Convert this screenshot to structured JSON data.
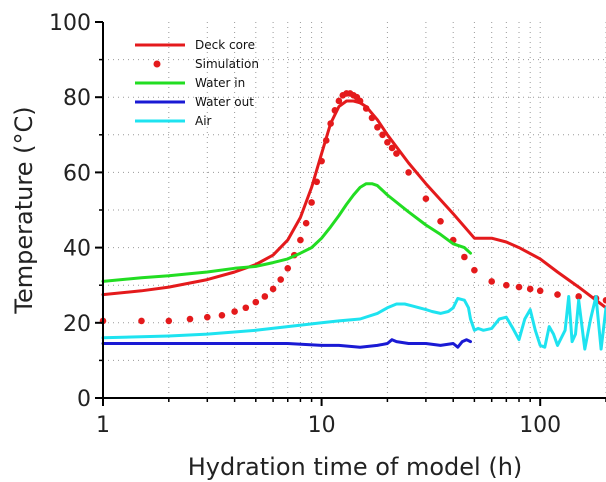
{
  "chart_data": {
    "type": "line",
    "xlabel": "Hydration time of model (h)",
    "ylabel": "Temperature (°C)",
    "x_scale": "log",
    "xlim": [
      1,
      200
    ],
    "ylim": [
      0,
      100
    ],
    "x_ticks": [
      1,
      10,
      100
    ],
    "y_ticks": [
      0,
      20,
      40,
      60,
      80,
      100
    ],
    "grid": true,
    "legend_position": "top-left",
    "series": [
      {
        "name": "Deck core",
        "style": "line",
        "color": "#e41a1c",
        "x": [
          1,
          1.5,
          2,
          3,
          4,
          5,
          6,
          7,
          8,
          9,
          10,
          11,
          12,
          13,
          14,
          15,
          16,
          18,
          20,
          25,
          30,
          40,
          50,
          60,
          70,
          80,
          100,
          120,
          150,
          200
        ],
        "y": [
          27.5,
          28.5,
          29.5,
          31.5,
          33.5,
          35.5,
          38,
          42,
          48,
          56,
          65,
          73,
          77.5,
          79,
          79,
          78.5,
          77.5,
          74,
          70,
          62.5,
          57,
          49,
          42.5,
          42.5,
          41.5,
          40,
          37,
          33.5,
          29.5,
          24
        ]
      },
      {
        "name": "Simulation",
        "style": "dots",
        "color": "#e41a1c",
        "x": [
          1,
          1.5,
          2,
          2.5,
          3,
          3.5,
          4,
          4.5,
          5,
          5.5,
          6,
          6.5,
          7,
          7.5,
          8,
          8.5,
          9,
          9.5,
          10,
          10.5,
          11,
          11.5,
          12,
          12.5,
          13,
          13.5,
          14,
          14.5,
          15,
          16,
          17,
          18,
          19,
          20,
          21,
          22,
          25,
          30,
          35,
          40,
          45,
          50,
          60,
          70,
          80,
          90,
          100,
          120,
          150,
          180,
          200
        ],
        "y": [
          20.5,
          20.5,
          20.5,
          21,
          21.5,
          22,
          23,
          24,
          25.5,
          27,
          29,
          31.5,
          34.5,
          38,
          42,
          46.5,
          52,
          57.5,
          63,
          68.5,
          73,
          76.5,
          79,
          80.5,
          81,
          81,
          80.5,
          80,
          79,
          77,
          74.5,
          72,
          70,
          68,
          66.5,
          65,
          60,
          53,
          47,
          42,
          37.5,
          34,
          31,
          30,
          29.5,
          29,
          28.5,
          27.5,
          27,
          26.5,
          26
        ]
      },
      {
        "name": "Water in",
        "style": "line",
        "color": "#22dd22",
        "x": [
          1,
          1.5,
          2,
          3,
          4,
          5,
          6,
          7,
          8,
          9,
          10,
          11,
          12,
          13,
          14,
          15,
          16,
          17,
          18,
          20,
          25,
          30,
          35,
          40,
          45,
          48
        ],
        "y": [
          31,
          32,
          32.5,
          33.5,
          34.5,
          35,
          36,
          37,
          38.5,
          40,
          42.5,
          45.5,
          48.5,
          51.5,
          54,
          56,
          57,
          57,
          56.5,
          54,
          49.5,
          46,
          43.5,
          41,
          40,
          38.5
        ]
      },
      {
        "name": "Water out",
        "style": "line",
        "color": "#1a1ad4",
        "x": [
          1,
          2,
          3,
          5,
          7,
          10,
          12,
          15,
          18,
          20,
          21,
          22,
          25,
          30,
          35,
          40,
          42,
          44,
          46,
          48
        ],
        "y": [
          14.5,
          14.5,
          14.5,
          14.5,
          14.5,
          14,
          14,
          13.5,
          14,
          14.5,
          15.5,
          15,
          14.5,
          14.5,
          14,
          14.5,
          13.5,
          15,
          15.5,
          15
        ]
      },
      {
        "name": "Air",
        "style": "line",
        "color": "#1ee3f0",
        "x": [
          1,
          2,
          3,
          5,
          7,
          10,
          12,
          15,
          18,
          20,
          22,
          24,
          26,
          28,
          30,
          32,
          35,
          38,
          40,
          42,
          45,
          47,
          48,
          50,
          52,
          55,
          60,
          65,
          70,
          75,
          80,
          85,
          90,
          95,
          100,
          105,
          110,
          115,
          120,
          130,
          135,
          140,
          145,
          150,
          160,
          170,
          180,
          190,
          200
        ],
        "y": [
          16,
          16.5,
          17,
          18,
          19,
          20,
          20.5,
          21,
          22.5,
          24,
          25,
          25,
          24.5,
          24,
          23.5,
          23,
          22.5,
          23,
          24,
          26.5,
          26,
          24,
          21,
          18,
          18.5,
          18,
          18.5,
          21,
          21.5,
          18.5,
          15.5,
          21,
          23.5,
          18,
          14,
          13.5,
          19,
          17,
          14,
          18,
          27,
          15,
          17,
          26,
          13,
          21,
          27,
          13,
          24
        ]
      }
    ]
  }
}
